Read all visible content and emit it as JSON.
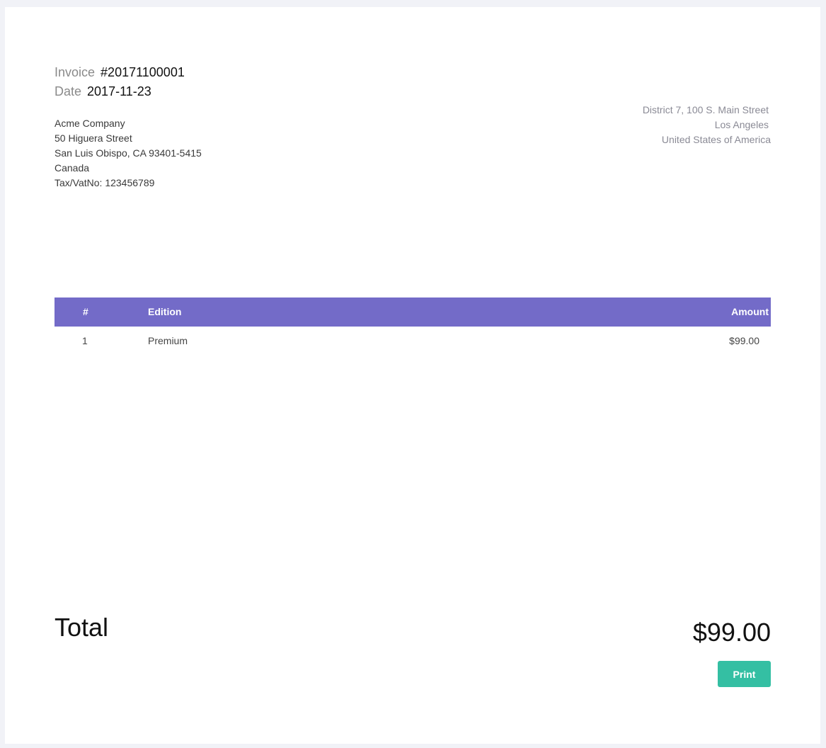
{
  "invoice": {
    "number_label": "Invoice",
    "number": "#20171100001",
    "date_label": "Date",
    "date": "2017-11-23"
  },
  "bill_to": [
    "Acme Company",
    "50 Higuera Street",
    "San Luis Obispo, CA 93401-5415",
    "Canada",
    "Tax/VatNo: 123456789"
  ],
  "from": [
    "District 7, 100 S. Main Street",
    "Los Angeles",
    "United States of America"
  ],
  "table": {
    "headers": [
      "#",
      "Edition",
      "Amount"
    ],
    "rows": [
      [
        "1",
        "Premium",
        "$99.00"
      ]
    ]
  },
  "total": {
    "label": "Total",
    "value": "$99.00"
  },
  "print_label": "Print",
  "colors": {
    "header": "#736bc8",
    "print": "#34bfa3"
  }
}
